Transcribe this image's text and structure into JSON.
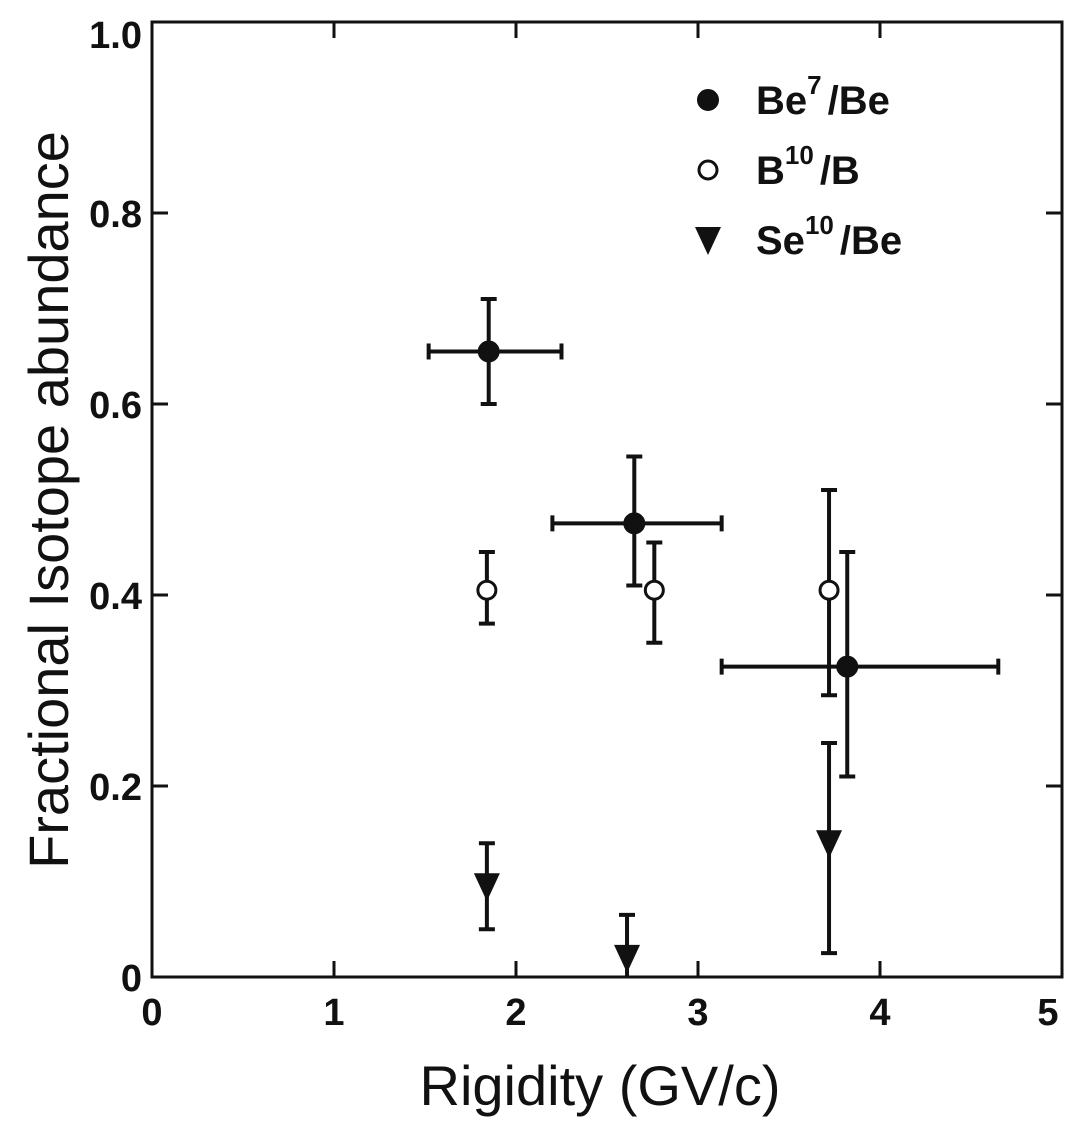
{
  "chart_data": {
    "type": "scatter",
    "title": "",
    "xlabel": "Rigidity (GV/c)",
    "ylabel": "Fractional Isotope abundance",
    "xlim": [
      0,
      5
    ],
    "ylim": [
      0,
      1.0
    ],
    "x_ticks": [
      "0",
      "1",
      "2",
      "3",
      "4",
      "5"
    ],
    "y_ticks": [
      "0",
      "0.2",
      "0.4",
      "0.6",
      "0.8",
      "1.0"
    ],
    "legend_position": "top-right",
    "series": [
      {
        "name": "Be7/Be",
        "label_base": "Be",
        "label_sup": "7",
        "label_tail": "/Be",
        "marker": "filled-circle",
        "points": [
          {
            "x": 1.85,
            "y": 0.655,
            "x_low": 1.52,
            "x_high": 2.25,
            "y_low": 0.6,
            "y_high": 0.71
          },
          {
            "x": 2.65,
            "y": 0.475,
            "x_low": 2.2,
            "x_high": 3.13,
            "y_low": 0.41,
            "y_high": 0.545
          },
          {
            "x": 3.82,
            "y": 0.325,
            "x_low": 3.13,
            "x_high": 4.65,
            "y_low": 0.21,
            "y_high": 0.445
          }
        ]
      },
      {
        "name": "B10/B",
        "label_base": "B",
        "label_sup": "10",
        "label_tail": "/B",
        "marker": "open-circle",
        "points": [
          {
            "x": 1.84,
            "y": 0.405,
            "y_low": 0.37,
            "y_high": 0.445
          },
          {
            "x": 2.76,
            "y": 0.405,
            "y_low": 0.35,
            "y_high": 0.455
          },
          {
            "x": 3.72,
            "y": 0.405,
            "y_low": 0.295,
            "y_high": 0.51
          }
        ]
      },
      {
        "name": "Se10/Be",
        "label_base": "Se",
        "label_sup": "10",
        "label_tail": "/Be",
        "marker": "filled-triangle-down",
        "points": [
          {
            "x": 1.84,
            "y": 0.095,
            "y_low": 0.05,
            "y_high": 0.14
          },
          {
            "x": 2.61,
            "y": 0.02,
            "y_low": -0.01,
            "y_high": 0.065
          },
          {
            "x": 3.72,
            "y": 0.14,
            "y_low": 0.025,
            "y_high": 0.245
          }
        ]
      }
    ]
  }
}
